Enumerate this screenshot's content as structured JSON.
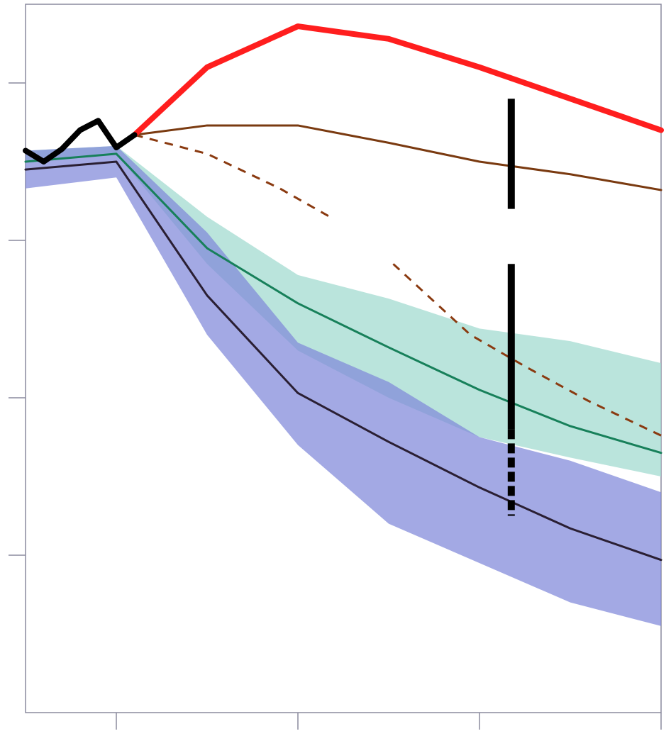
{
  "chart_data": {
    "type": "line",
    "title": "",
    "xlabel": "",
    "ylabel": "",
    "xlim": [
      0,
      7
    ],
    "ylim": [
      0,
      4.5
    ],
    "grid": false,
    "x_ticks": [
      1,
      3,
      5,
      7
    ],
    "y_ticks": [
      1,
      2,
      3,
      4
    ],
    "bands": [
      {
        "name": "",
        "color": "#9fd9cf",
        "x": [
          0,
          1,
          2,
          3,
          4,
          5,
          6,
          7
        ],
        "upper": [
          3.57,
          3.6,
          3.15,
          2.78,
          2.63,
          2.44,
          2.36,
          2.22
        ],
        "lower": [
          3.5,
          3.55,
          2.85,
          2.3,
          2.0,
          1.75,
          1.62,
          1.5
        ]
      },
      {
        "name": "",
        "color": "#8088da",
        "x": [
          0,
          1,
          2,
          3,
          4,
          5,
          6,
          7
        ],
        "upper": [
          3.57,
          3.6,
          3.05,
          2.35,
          2.1,
          1.75,
          1.6,
          1.4
        ],
        "lower": [
          3.33,
          3.4,
          2.4,
          1.7,
          1.2,
          0.95,
          0.7,
          0.55
        ]
      }
    ],
    "series": [
      {
        "name": "",
        "color": "#000000",
        "style": "solid-thick",
        "x": [
          0,
          0.2,
          0.4,
          0.6,
          0.8,
          1.0,
          1.2
        ],
        "values": [
          3.57,
          3.5,
          3.58,
          3.7,
          3.76,
          3.59,
          3.67
        ]
      },
      {
        "name": "",
        "color": "#ff1e1e",
        "style": "solid-thick",
        "x": [
          1.2,
          2,
          3,
          4,
          5,
          6,
          7
        ],
        "values": [
          3.67,
          4.1,
          4.36,
          4.28,
          4.1,
          3.9,
          3.7
        ]
      },
      {
        "name": "",
        "color": "#7a3a10",
        "style": "solid-thin",
        "x": [
          1.2,
          2,
          3,
          4,
          5,
          6,
          7
        ],
        "values": [
          3.67,
          3.73,
          3.73,
          3.62,
          3.5,
          3.42,
          3.32
        ]
      },
      {
        "name": "",
        "color": "#8a3a10",
        "style": "dashed",
        "x": [
          1.2,
          2,
          2.8,
          3.35
        ],
        "values": [
          3.67,
          3.55,
          3.33,
          3.15
        ]
      },
      {
        "name": "",
        "color": "#8a3a10",
        "style": "dashed",
        "x": [
          4.05,
          4.9,
          5.5,
          6.2,
          7
        ],
        "values": [
          2.85,
          2.4,
          2.2,
          1.98,
          1.76
        ]
      },
      {
        "name": "",
        "color": "#17805a",
        "style": "solid-thin",
        "x": [
          0,
          1,
          2,
          3,
          4,
          5,
          6,
          7
        ],
        "values": [
          3.5,
          3.55,
          2.95,
          2.6,
          2.32,
          2.05,
          1.82,
          1.65
        ]
      },
      {
        "name": "",
        "color": "#2a1f33",
        "style": "solid-thin",
        "x": [
          0,
          1,
          2,
          3,
          4,
          5,
          6,
          7
        ],
        "values": [
          3.45,
          3.5,
          2.65,
          2.03,
          1.72,
          1.43,
          1.17,
          0.97
        ]
      }
    ],
    "markers": [
      {
        "x": 5.35,
        "y_from": 3.9,
        "y_to": 3.2,
        "style": "solid"
      },
      {
        "x": 5.35,
        "y_from": 2.85,
        "y_to": 1.8,
        "style": "solid"
      },
      {
        "x": 5.35,
        "y_from": 1.8,
        "y_to": 1.25,
        "style": "dashed"
      }
    ]
  }
}
